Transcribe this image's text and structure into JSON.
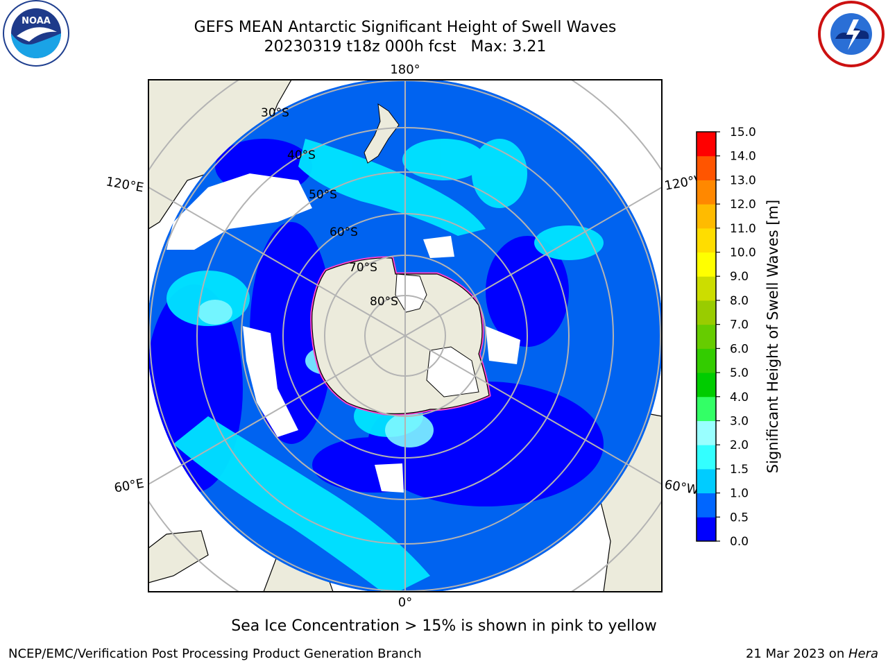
{
  "title": {
    "line1": "GEFS MEAN Antarctic Significant Height of Swell Waves",
    "line2": "20230319 t18z 000h fcst   Max: 3.21"
  },
  "logos": {
    "left": {
      "name": "NOAA",
      "icon": "noaa-logo"
    },
    "right": {
      "name": "NATIONAL WEATHER SERVICE",
      "icon": "nws-logo"
    }
  },
  "map": {
    "projection": "south-polar-stereographic",
    "colors": {
      "land": "#ecebdc",
      "ice": "#ffffff",
      "ocean_base": "#0063f0",
      "coast": "#000000",
      "grid": "#b3b3b3"
    },
    "lon_labels": {
      "top": "180°",
      "bottom": "0°",
      "left_upper": "120°E",
      "left_lower": "60°E",
      "right_upper": "120°W",
      "right_lower": "60°W"
    },
    "lat_labels": [
      "30°S",
      "40°S",
      "50°S",
      "60°S",
      "70°S",
      "80°S"
    ]
  },
  "colorbar": {
    "label": "Significant Height of Swell Waves [m]",
    "ticks": [
      "0.0",
      "0.5",
      "1.0",
      "1.5",
      "2.0",
      "3.0",
      "4.0",
      "5.0",
      "6.0",
      "7.0",
      "8.0",
      "9.0",
      "10.0",
      "11.0",
      "12.0",
      "13.0",
      "14.0",
      "15.0"
    ],
    "colors": [
      "#0000ff",
      "#0066ff",
      "#00ccff",
      "#33ffff",
      "#99ffff",
      "#33ff66",
      "#00cc00",
      "#33cc00",
      "#66cc00",
      "#99cc00",
      "#ccdd00",
      "#ffff00",
      "#ffdd00",
      "#ffbb00",
      "#ff8800",
      "#ff5500",
      "#ff0000"
    ]
  },
  "caption": "Sea Ice Concentration > 15% is shown in pink to yellow",
  "footer": {
    "left": "NCEP/EMC/Verification Post Processing Product Generation Branch",
    "right_date": "21 Mar 2023 on ",
    "right_host": "Hera"
  }
}
